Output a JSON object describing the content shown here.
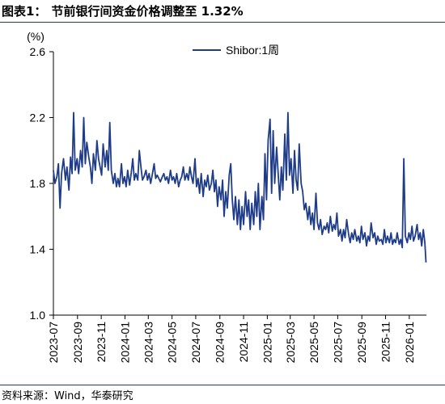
{
  "header": {
    "figure_label": "图表1：",
    "title": "节前银行间资金价格调整至 1.32%"
  },
  "footer": {
    "source": "资料来源：Wind，华泰研究"
  },
  "colors": {
    "series": "#1f3c88",
    "rule": "#1f3864"
  },
  "chart_data": {
    "type": "line",
    "title": "",
    "ylabel": "(%)",
    "xlabel": "",
    "ylim": [
      1.0,
      2.6
    ],
    "yticks": [
      "1.0",
      "1.4",
      "1.8",
      "2.2",
      "2.6"
    ],
    "xlim": [
      "2023-07-01",
      "2026-02-14"
    ],
    "xticks": [
      "2023-07",
      "2023-09",
      "2023-11",
      "2024-01",
      "2024-03",
      "2024-05",
      "2024-07",
      "2024-09",
      "2024-11",
      "2025-01",
      "2025-03",
      "2025-05",
      "2025-07",
      "2025-09",
      "2025-11",
      "2026-01"
    ],
    "grid": false,
    "legend_position": "top-center",
    "series": [
      {
        "name": "Shibor:1周",
        "points": [
          [
            "2023-07-01",
            1.88
          ],
          [
            "2023-07-05",
            1.8
          ],
          [
            "2023-07-10",
            1.84
          ],
          [
            "2023-07-14",
            1.92
          ],
          [
            "2023-07-18",
            1.65
          ],
          [
            "2023-07-22",
            1.86
          ],
          [
            "2023-07-27",
            1.95
          ],
          [
            "2023-08-01",
            1.82
          ],
          [
            "2023-08-05",
            1.9
          ],
          [
            "2023-08-10",
            1.76
          ],
          [
            "2023-08-14",
            1.96
          ],
          [
            "2023-08-18",
            1.86
          ],
          [
            "2023-08-22",
            2.23
          ],
          [
            "2023-08-26",
            1.88
          ],
          [
            "2023-08-31",
            1.95
          ],
          [
            "2023-09-04",
            1.86
          ],
          [
            "2023-09-09",
            2.0
          ],
          [
            "2023-09-13",
            1.9
          ],
          [
            "2023-09-17",
            2.2
          ],
          [
            "2023-09-21",
            1.92
          ],
          [
            "2023-09-25",
            2.05
          ],
          [
            "2023-09-30",
            1.96
          ],
          [
            "2023-10-04",
            1.9
          ],
          [
            "2023-10-08",
            1.8
          ],
          [
            "2023-10-12",
            1.98
          ],
          [
            "2023-10-17",
            1.88
          ],
          [
            "2023-10-21",
            2.06
          ],
          [
            "2023-10-25",
            1.95
          ],
          [
            "2023-10-29",
            1.9
          ],
          [
            "2023-11-02",
            1.85
          ],
          [
            "2023-11-06",
            2.04
          ],
          [
            "2023-11-11",
            1.9
          ],
          [
            "2023-11-15",
            2.0
          ],
          [
            "2023-11-19",
            1.88
          ],
          [
            "2023-11-23",
            2.17
          ],
          [
            "2023-11-27",
            1.88
          ],
          [
            "2023-12-02",
            1.8
          ],
          [
            "2023-12-06",
            1.86
          ],
          [
            "2023-12-10",
            1.78
          ],
          [
            "2023-12-14",
            1.83
          ],
          [
            "2023-12-18",
            1.78
          ],
          [
            "2023-12-23",
            1.92
          ],
          [
            "2023-12-27",
            1.8
          ],
          [
            "2023-12-31",
            1.84
          ],
          [
            "2024-01-04",
            1.78
          ],
          [
            "2024-01-08",
            1.88
          ],
          [
            "2024-01-13",
            1.79
          ],
          [
            "2024-01-17",
            1.86
          ],
          [
            "2024-01-21",
            1.95
          ],
          [
            "2024-01-25",
            1.82
          ],
          [
            "2024-01-29",
            1.86
          ],
          [
            "2024-02-03",
            1.82
          ],
          [
            "2024-02-07",
            2.0
          ],
          [
            "2024-02-11",
            1.9
          ],
          [
            "2024-02-15",
            1.82
          ],
          [
            "2024-02-19",
            1.84
          ],
          [
            "2024-02-24",
            1.88
          ],
          [
            "2024-02-28",
            1.82
          ],
          [
            "2024-03-03",
            1.86
          ],
          [
            "2024-03-07",
            1.8
          ],
          [
            "2024-03-11",
            1.85
          ],
          [
            "2024-03-16",
            1.92
          ],
          [
            "2024-03-20",
            1.83
          ],
          [
            "2024-03-24",
            1.85
          ],
          [
            "2024-03-28",
            1.83
          ],
          [
            "2024-04-01",
            1.81
          ],
          [
            "2024-04-06",
            1.84
          ],
          [
            "2024-04-10",
            1.86
          ],
          [
            "2024-04-14",
            1.82
          ],
          [
            "2024-04-18",
            1.84
          ],
          [
            "2024-04-22",
            1.8
          ],
          [
            "2024-04-27",
            1.88
          ],
          [
            "2024-05-01",
            1.82
          ],
          [
            "2024-05-05",
            1.84
          ],
          [
            "2024-05-09",
            1.8
          ],
          [
            "2024-05-13",
            1.86
          ],
          [
            "2024-05-18",
            1.78
          ],
          [
            "2024-05-22",
            1.82
          ],
          [
            "2024-05-26",
            1.84
          ],
          [
            "2024-05-30",
            1.9
          ],
          [
            "2024-06-03",
            1.82
          ],
          [
            "2024-06-08",
            1.86
          ],
          [
            "2024-06-12",
            1.82
          ],
          [
            "2024-06-16",
            1.9
          ],
          [
            "2024-06-20",
            1.84
          ],
          [
            "2024-06-24",
            1.8
          ],
          [
            "2024-06-29",
            1.95
          ],
          [
            "2024-07-03",
            1.78
          ],
          [
            "2024-07-07",
            1.83
          ],
          [
            "2024-07-11",
            1.74
          ],
          [
            "2024-07-15",
            1.86
          ],
          [
            "2024-07-20",
            1.72
          ],
          [
            "2024-07-24",
            1.82
          ],
          [
            "2024-07-28",
            1.78
          ],
          [
            "2024-08-01",
            1.85
          ],
          [
            "2024-08-05",
            1.76
          ],
          [
            "2024-08-10",
            1.8
          ],
          [
            "2024-08-14",
            1.88
          ],
          [
            "2024-08-18",
            1.75
          ],
          [
            "2024-08-22",
            1.82
          ],
          [
            "2024-08-26",
            1.66
          ],
          [
            "2024-08-30",
            1.78
          ],
          [
            "2024-09-04",
            1.7
          ],
          [
            "2024-09-08",
            1.82
          ],
          [
            "2024-09-12",
            1.6
          ],
          [
            "2024-09-16",
            1.75
          ],
          [
            "2024-09-20",
            1.65
          ],
          [
            "2024-09-25",
            1.85
          ],
          [
            "2024-09-29",
            1.92
          ],
          [
            "2024-10-03",
            1.7
          ],
          [
            "2024-10-07",
            1.58
          ],
          [
            "2024-10-11",
            1.72
          ],
          [
            "2024-10-16",
            1.55
          ],
          [
            "2024-10-20",
            1.7
          ],
          [
            "2024-10-24",
            1.52
          ],
          [
            "2024-10-28",
            1.66
          ],
          [
            "2024-11-01",
            1.55
          ],
          [
            "2024-11-06",
            1.75
          ],
          [
            "2024-11-10",
            1.6
          ],
          [
            "2024-11-14",
            1.7
          ],
          [
            "2024-11-18",
            1.52
          ],
          [
            "2024-11-22",
            1.68
          ],
          [
            "2024-11-27",
            1.55
          ],
          [
            "2024-12-01",
            1.75
          ],
          [
            "2024-12-05",
            1.6
          ],
          [
            "2024-12-09",
            1.8
          ],
          [
            "2024-12-13",
            1.52
          ],
          [
            "2024-12-18",
            1.72
          ],
          [
            "2024-12-22",
            1.58
          ],
          [
            "2024-12-26",
            1.98
          ],
          [
            "2024-12-30",
            1.7
          ],
          [
            "2025-01-03",
            2.06
          ],
          [
            "2025-01-08",
            2.19
          ],
          [
            "2025-01-12",
            1.74
          ],
          [
            "2025-01-16",
            2.12
          ],
          [
            "2025-01-20",
            1.8
          ],
          [
            "2025-01-25",
            2.02
          ],
          [
            "2025-01-29",
            1.86
          ],
          [
            "2025-02-02",
            1.7
          ],
          [
            "2025-02-06",
            1.9
          ],
          [
            "2025-02-10",
            1.76
          ],
          [
            "2025-02-15",
            2.1
          ],
          [
            "2025-02-19",
            1.82
          ],
          [
            "2025-02-23",
            2.23
          ],
          [
            "2025-02-27",
            1.85
          ],
          [
            "2025-03-03",
            1.95
          ],
          [
            "2025-03-08",
            1.74
          ],
          [
            "2025-03-12",
            2.0
          ],
          [
            "2025-03-16",
            1.82
          ],
          [
            "2025-03-20",
            1.76
          ],
          [
            "2025-03-24",
            2.04
          ],
          [
            "2025-03-29",
            1.8
          ],
          [
            "2025-04-02",
            1.75
          ],
          [
            "2025-04-06",
            1.64
          ],
          [
            "2025-04-10",
            1.68
          ],
          [
            "2025-04-15",
            1.58
          ],
          [
            "2025-04-19",
            1.66
          ],
          [
            "2025-04-23",
            1.55
          ],
          [
            "2025-04-27",
            1.62
          ],
          [
            "2025-05-01",
            1.52
          ],
          [
            "2025-05-06",
            1.74
          ],
          [
            "2025-05-10",
            1.56
          ],
          [
            "2025-05-14",
            1.52
          ],
          [
            "2025-05-18",
            1.58
          ],
          [
            "2025-05-22",
            1.49
          ],
          [
            "2025-05-27",
            1.54
          ],
          [
            "2025-05-31",
            1.52
          ],
          [
            "2025-06-04",
            1.56
          ],
          [
            "2025-06-08",
            1.5
          ],
          [
            "2025-06-12",
            1.6
          ],
          [
            "2025-06-17",
            1.51
          ],
          [
            "2025-06-21",
            1.55
          ],
          [
            "2025-06-25",
            1.52
          ],
          [
            "2025-06-29",
            1.62
          ],
          [
            "2025-07-03",
            1.48
          ],
          [
            "2025-07-08",
            1.52
          ],
          [
            "2025-07-12",
            1.45
          ],
          [
            "2025-07-16",
            1.52
          ],
          [
            "2025-07-20",
            1.47
          ],
          [
            "2025-07-24",
            1.58
          ],
          [
            "2025-07-29",
            1.49
          ],
          [
            "2025-08-02",
            1.44
          ],
          [
            "2025-08-06",
            1.5
          ],
          [
            "2025-08-10",
            1.46
          ],
          [
            "2025-08-14",
            1.52
          ],
          [
            "2025-08-19",
            1.45
          ],
          [
            "2025-08-23",
            1.48
          ],
          [
            "2025-08-27",
            1.44
          ],
          [
            "2025-08-31",
            1.54
          ],
          [
            "2025-09-04",
            1.46
          ],
          [
            "2025-09-09",
            1.5
          ],
          [
            "2025-09-13",
            1.42
          ],
          [
            "2025-09-17",
            1.48
          ],
          [
            "2025-09-21",
            1.45
          ],
          [
            "2025-09-25",
            1.56
          ],
          [
            "2025-09-30",
            1.47
          ],
          [
            "2025-10-04",
            1.5
          ],
          [
            "2025-10-08",
            1.43
          ],
          [
            "2025-10-12",
            1.48
          ],
          [
            "2025-10-16",
            1.45
          ],
          [
            "2025-10-21",
            1.46
          ],
          [
            "2025-10-25",
            1.43
          ],
          [
            "2025-10-29",
            1.52
          ],
          [
            "2025-11-02",
            1.44
          ],
          [
            "2025-11-06",
            1.48
          ],
          [
            "2025-11-11",
            1.44
          ],
          [
            "2025-11-15",
            1.5
          ],
          [
            "2025-11-19",
            1.43
          ],
          [
            "2025-11-23",
            1.46
          ],
          [
            "2025-11-27",
            1.44
          ],
          [
            "2025-12-01",
            1.5
          ],
          [
            "2025-12-06",
            1.43
          ],
          [
            "2025-12-10",
            1.46
          ],
          [
            "2025-12-14",
            1.41
          ],
          [
            "2025-12-18",
            1.95
          ],
          [
            "2025-12-22",
            1.48
          ],
          [
            "2025-12-27",
            1.44
          ],
          [
            "2025-12-31",
            1.5
          ],
          [
            "2026-01-04",
            1.46
          ],
          [
            "2026-01-08",
            1.54
          ],
          [
            "2026-01-12",
            1.45
          ],
          [
            "2026-01-16",
            1.48
          ],
          [
            "2026-01-21",
            1.55
          ],
          [
            "2026-01-25",
            1.46
          ],
          [
            "2026-01-29",
            1.5
          ],
          [
            "2026-02-02",
            1.42
          ],
          [
            "2026-02-06",
            1.52
          ],
          [
            "2026-02-10",
            1.44
          ],
          [
            "2026-02-13",
            1.32
          ]
        ]
      }
    ]
  }
}
